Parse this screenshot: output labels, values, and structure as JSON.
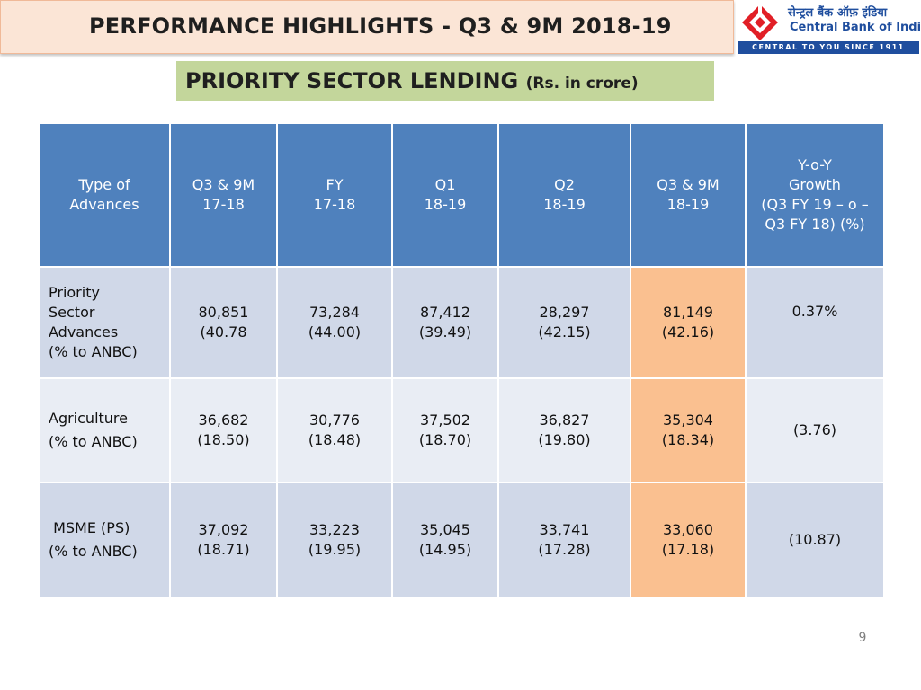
{
  "header": {
    "title": "PERFORMANCE HIGHLIGHTS - Q3 & 9M 2018-19"
  },
  "logo": {
    "hindi": "सेन्ट्रल बैंक ऑफ़ इंडिया",
    "english": "Central Bank of India",
    "tagline": "CENTRAL TO YOU SINCE 1911",
    "colors": {
      "brand_blue": "#1f4e9e",
      "brand_red": "#e11f26"
    }
  },
  "section": {
    "title": "PRIORITY SECTOR LENDING",
    "subtitle": "(Rs. in crore)"
  },
  "table": {
    "columns": [
      [
        "Type of",
        "Advances"
      ],
      [
        "Q3 & 9M",
        "17-18"
      ],
      [
        "FY",
        "17-18"
      ],
      [
        "Q1",
        "18-19"
      ],
      [
        "Q2",
        "18-19"
      ],
      [
        "Q3 & 9M",
        "18-19"
      ],
      [
        "Y-o-Y",
        "Growth",
        "(Q3 FY 19 – o –",
        "Q3 FY 18) (%)"
      ]
    ],
    "rows": [
      {
        "label": [
          "Priority",
          "Sector",
          "Advances",
          "(% to ANBC)"
        ],
        "values": [
          [
            "80,851",
            "(40.78"
          ],
          [
            "73,284",
            "(44.00)"
          ],
          [
            "87,412",
            "(39.49)"
          ],
          [
            "28,297",
            "(42.15)"
          ],
          [
            "81,149",
            "(42.16)"
          ]
        ],
        "growth": "0.37%"
      },
      {
        "label": [
          "Agriculture",
          "(% to ANBC)"
        ],
        "values": [
          [
            "36,682",
            "(18.50)"
          ],
          [
            "30,776",
            "(18.48)"
          ],
          [
            "37,502",
            "(18.70)"
          ],
          [
            "36,827",
            "(19.80)"
          ],
          [
            "35,304",
            "(18.34)"
          ]
        ],
        "growth": "(3.76)"
      },
      {
        "label": [
          " MSME (PS)",
          "(% to ANBC)"
        ],
        "values": [
          [
            "37,092",
            "(18.71)"
          ],
          [
            "33,223",
            "(19.95)"
          ],
          [
            "35,045",
            "(14.95)"
          ],
          [
            "33,741",
            "(17.28)"
          ],
          [
            "33,060",
            "(17.18)"
          ]
        ],
        "growth": "(10.87)"
      }
    ],
    "colors": {
      "header_bg": "#4f81bd",
      "row_dark": "#d0d8e8",
      "row_light": "#e9edf4",
      "highlight": "#fac090"
    }
  },
  "page_number": "9"
}
